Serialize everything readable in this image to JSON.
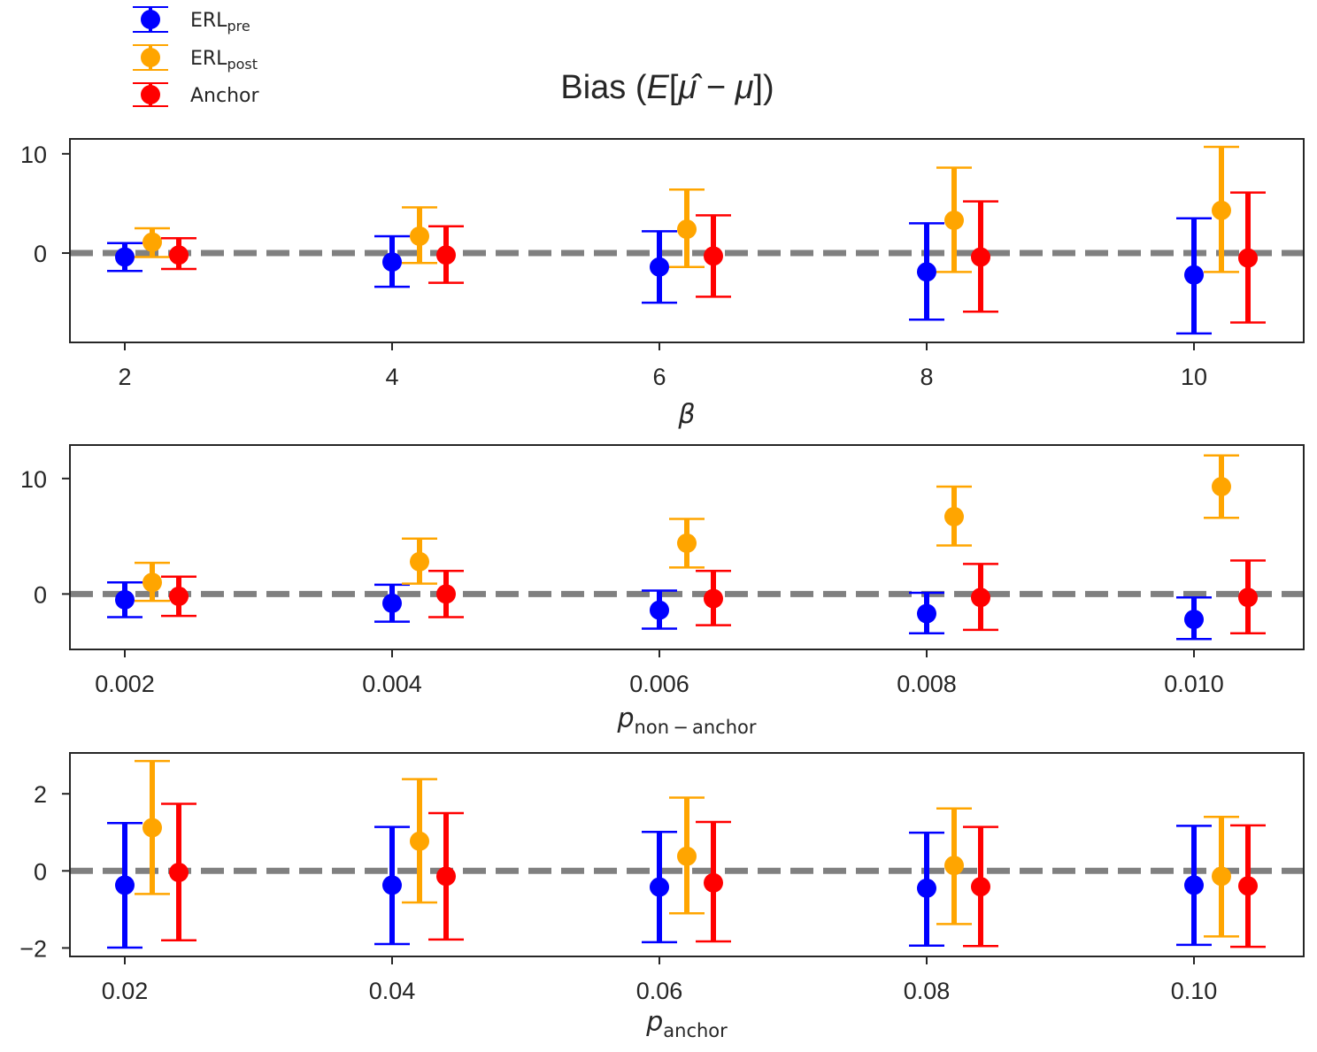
{
  "chart_data": {
    "type": "errorbar",
    "title": "Bias (E[μ̂ − μ])",
    "title_parts": {
      "pre": "Bias (",
      "E": "E",
      "open": "[",
      "muhat": "μ̂",
      "minus": " − ",
      "mu": "μ",
      "close": "])"
    },
    "legend": {
      "placement": "top-left",
      "entries": [
        {
          "main": "ERL",
          "sub": "pre",
          "color": "#0000ff"
        },
        {
          "main": "ERL",
          "sub": "post",
          "color": "#ffa500"
        },
        {
          "main": "Anchor",
          "sub": "",
          "color": "#ff0000"
        }
      ]
    },
    "reference_line": {
      "y": 0,
      "style": "dashed",
      "color": "#808080"
    },
    "panels": [
      {
        "xlabel_main": "β",
        "xlabel_sub": "",
        "categories": [
          "2",
          "4",
          "6",
          "8",
          "10"
        ],
        "yticks": [
          0,
          10
        ],
        "ytick_labels": [
          "0",
          "10"
        ],
        "ylim": [
          -9,
          11.5
        ],
        "series": [
          {
            "name": "ERL_pre",
            "values": [
              -0.4,
              -0.9,
              -1.4,
              -1.9,
              -2.2
            ],
            "lower": [
              -1.8,
              -3.4,
              -5.0,
              -6.7,
              -8.1
            ],
            "upper": [
              1.0,
              1.7,
              2.2,
              3.0,
              3.5
            ]
          },
          {
            "name": "ERL_post",
            "values": [
              1.1,
              1.7,
              2.4,
              3.3,
              4.3
            ],
            "lower": [
              -0.4,
              -1.0,
              -1.4,
              -1.9,
              -1.9
            ],
            "upper": [
              2.5,
              4.6,
              6.4,
              8.6,
              10.7
            ]
          },
          {
            "name": "Anchor",
            "values": [
              -0.2,
              -0.2,
              -0.3,
              -0.4,
              -0.5
            ],
            "lower": [
              -1.6,
              -3.0,
              -4.4,
              -5.9,
              -7.0
            ],
            "upper": [
              1.5,
              2.7,
              3.8,
              5.2,
              6.1
            ]
          }
        ]
      },
      {
        "xlabel_main": "p",
        "xlabel_sub": "non − anchor",
        "categories": [
          "0.002",
          "0.004",
          "0.006",
          "0.008",
          "0.010"
        ],
        "yticks": [
          0,
          10
        ],
        "ytick_labels": [
          "0",
          "10"
        ],
        "ylim": [
          -4.8,
          12.9
        ],
        "series": [
          {
            "name": "ERL_pre",
            "values": [
              -0.5,
              -0.8,
              -1.4,
              -1.7,
              -2.2
            ],
            "lower": [
              -2.0,
              -2.4,
              -3.0,
              -3.4,
              -3.9
            ],
            "upper": [
              1.0,
              0.8,
              0.3,
              0.1,
              -0.3
            ]
          },
          {
            "name": "ERL_post",
            "values": [
              1.0,
              2.8,
              4.4,
              6.7,
              9.3
            ],
            "lower": [
              -0.6,
              0.9,
              2.3,
              4.2,
              6.6
            ],
            "upper": [
              2.7,
              4.8,
              6.5,
              9.3,
              12.0
            ]
          },
          {
            "name": "Anchor",
            "values": [
              -0.2,
              0.0,
              -0.4,
              -0.3,
              -0.3
            ],
            "lower": [
              -1.9,
              -2.0,
              -2.7,
              -3.1,
              -3.4
            ],
            "upper": [
              1.5,
              2.0,
              2.0,
              2.6,
              2.9
            ]
          }
        ]
      },
      {
        "xlabel_main": "p",
        "xlabel_sub": "anchor",
        "categories": [
          "0.02",
          "0.04",
          "0.06",
          "0.08",
          "0.10"
        ],
        "yticks": [
          -2,
          0,
          2
        ],
        "ytick_labels": [
          "−2",
          "0",
          "2"
        ],
        "ylim": [
          -2.22,
          3.06
        ],
        "series": [
          {
            "name": "ERL_pre",
            "values": [
              -0.37,
              -0.37,
              -0.42,
              -0.45,
              -0.37
            ],
            "lower": [
              -1.99,
              -1.9,
              -1.85,
              -1.94,
              -1.92
            ],
            "upper": [
              1.24,
              1.14,
              1.01,
              0.99,
              1.17
            ]
          },
          {
            "name": "ERL_post",
            "values": [
              1.12,
              0.77,
              0.38,
              0.14,
              -0.14
            ],
            "lower": [
              -0.6,
              -0.82,
              -1.1,
              -1.38,
              -1.7
            ],
            "upper": [
              2.85,
              2.38,
              1.9,
              1.62,
              1.4
            ]
          },
          {
            "name": "Anchor",
            "values": [
              -0.04,
              -0.14,
              -0.31,
              -0.41,
              -0.39
            ],
            "lower": [
              -1.8,
              -1.78,
              -1.83,
              -1.95,
              -1.97
            ],
            "upper": [
              1.74,
              1.5,
              1.27,
              1.14,
              1.18
            ]
          }
        ]
      }
    ]
  }
}
